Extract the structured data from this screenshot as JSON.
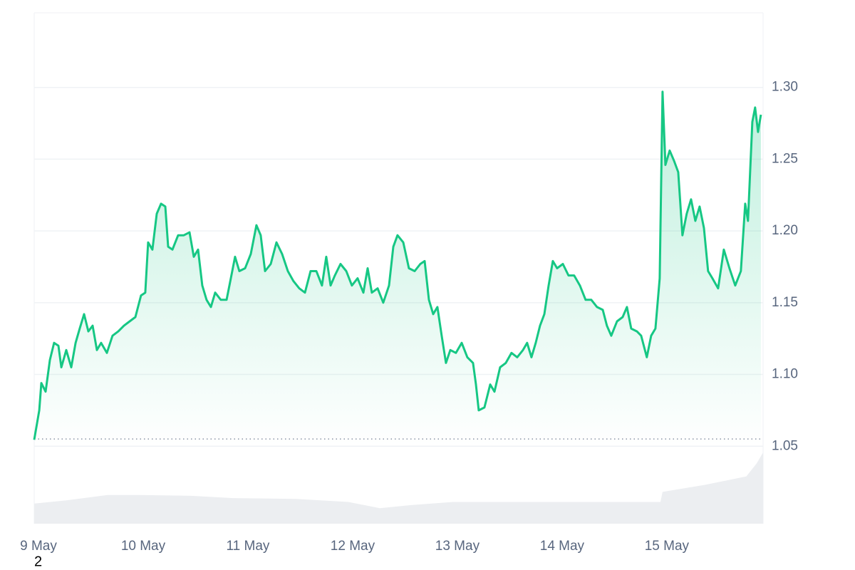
{
  "chart_data": {
    "type": "line",
    "color": "#16c784",
    "grid": true,
    "baseline": 1.055,
    "footnote": "2",
    "xlim": [
      0,
      6.96
    ],
    "ylim": [
      0.996,
      1.352
    ],
    "xticks": [
      {
        "value": 0,
        "label": "9 May"
      },
      {
        "value": 1,
        "label": "10 May"
      },
      {
        "value": 2,
        "label": "11 May"
      },
      {
        "value": 3,
        "label": "12 May"
      },
      {
        "value": 4,
        "label": "13 May"
      },
      {
        "value": 5,
        "label": "14 May"
      },
      {
        "value": 6,
        "label": "15 May"
      }
    ],
    "yticks": [
      1.05,
      {
        "value": 1.1,
        "label": "1.10"
      },
      1.15,
      {
        "value": 1.2,
        "label": "1.20"
      },
      1.25,
      {
        "value": 1.3,
        "label": "1.30"
      }
    ],
    "x": [
      0,
      0.048,
      0.068,
      0.109,
      0.15,
      0.19,
      0.231,
      0.259,
      0.306,
      0.354,
      0.395,
      0.435,
      0.476,
      0.517,
      0.558,
      0.599,
      0.639,
      0.694,
      0.748,
      0.803,
      0.857,
      0.912,
      0.966,
      1.02,
      1.061,
      1.088,
      1.129,
      1.17,
      1.211,
      1.252,
      1.279,
      1.32,
      1.374,
      1.429,
      1.483,
      1.524,
      1.565,
      1.605,
      1.646,
      1.687,
      1.728,
      1.782,
      1.837,
      1.878,
      1.918,
      1.959,
      2.014,
      2.068,
      2.122,
      2.163,
      2.204,
      2.259,
      2.313,
      2.367,
      2.422,
      2.476,
      2.531,
      2.585,
      2.639,
      2.694,
      2.748,
      2.789,
      2.83,
      2.871,
      2.925,
      2.98,
      3.034,
      3.088,
      3.143,
      3.184,
      3.224,
      3.279,
      3.333,
      3.388,
      3.429,
      3.469,
      3.524,
      3.578,
      3.633,
      3.687,
      3.728,
      3.769,
      3.81,
      3.85,
      3.891,
      3.932,
      3.973,
      4.027,
      4.082,
      4.136,
      4.19,
      4.218,
      4.245,
      4.299,
      4.354,
      4.395,
      4.449,
      4.503,
      4.558,
      4.612,
      4.667,
      4.707,
      4.748,
      4.789,
      4.83,
      4.871,
      4.912,
      4.952,
      4.993,
      5.048,
      5.102,
      5.156,
      5.211,
      5.265,
      5.32,
      5.374,
      5.429,
      5.469,
      5.51,
      5.565,
      5.619,
      5.66,
      5.701,
      5.755,
      5.796,
      5.85,
      5.891,
      5.932,
      5.973,
      6,
      6.027,
      6.068,
      6.109,
      6.15,
      6.19,
      6.231,
      6.272,
      6.313,
      6.354,
      6.395,
      6.435,
      6.476,
      6.531,
      6.585,
      6.639,
      6.694,
      6.748,
      6.789,
      6.816,
      6.857,
      6.884,
      6.912,
      6.939
    ],
    "values": [
      1.0545,
      1.075,
      1.094,
      1.088,
      1.11,
      1.122,
      1.12,
      1.105,
      1.117,
      1.105,
      1.122,
      1.132,
      1.142,
      1.13,
      1.134,
      1.117,
      1.122,
      1.115,
      1.127,
      1.13,
      1.134,
      1.137,
      1.14,
      1.155,
      1.157,
      1.192,
      1.187,
      1.212,
      1.219,
      1.217,
      1.189,
      1.187,
      1.197,
      1.197,
      1.199,
      1.182,
      1.187,
      1.162,
      1.152,
      1.147,
      1.157,
      1.152,
      1.152,
      1.167,
      1.182,
      1.172,
      1.174,
      1.184,
      1.204,
      1.197,
      1.172,
      1.177,
      1.192,
      1.184,
      1.172,
      1.165,
      1.16,
      1.157,
      1.172,
      1.172,
      1.162,
      1.182,
      1.162,
      1.169,
      1.177,
      1.172,
      1.162,
      1.167,
      1.157,
      1.174,
      1.157,
      1.16,
      1.15,
      1.162,
      1.189,
      1.197,
      1.192,
      1.174,
      1.172,
      1.177,
      1.179,
      1.152,
      1.142,
      1.147,
      1.127,
      1.108,
      1.117,
      1.115,
      1.122,
      1.112,
      1.108,
      1.093,
      1.075,
      1.077,
      1.093,
      1.088,
      1.105,
      1.108,
      1.115,
      1.112,
      1.117,
      1.122,
      1.112,
      1.122,
      1.134,
      1.142,
      1.162,
      1.179,
      1.174,
      1.177,
      1.169,
      1.169,
      1.162,
      1.152,
      1.152,
      1.147,
      1.145,
      1.134,
      1.127,
      1.137,
      1.14,
      1.147,
      1.132,
      1.13,
      1.127,
      1.112,
      1.127,
      1.132,
      1.167,
      1.297,
      1.246,
      1.256,
      1.249,
      1.241,
      1.197,
      1.212,
      1.222,
      1.207,
      1.217,
      1.202,
      1.172,
      1.167,
      1.16,
      1.187,
      1.174,
      1.162,
      1.172,
      1.219,
      1.207,
      1.276,
      1.286,
      1.269,
      1.281
    ],
    "volume": {
      "color": "#eceef1",
      "y2lim": [
        0,
        100
      ],
      "x": [
        0,
        0.3,
        0.7,
        1.0,
        1.5,
        1.9,
        2.5,
        3.0,
        3.3,
        3.6,
        4.0,
        4.5,
        5.0,
        5.5,
        5.9,
        5.98,
        6.0,
        6.4,
        6.8,
        6.9,
        6.96
      ],
      "values": [
        26,
        30,
        37,
        37,
        36,
        33,
        32,
        28,
        20,
        24,
        28,
        28,
        28,
        28,
        28,
        28,
        41,
        50,
        61,
        78,
        92
      ]
    }
  }
}
